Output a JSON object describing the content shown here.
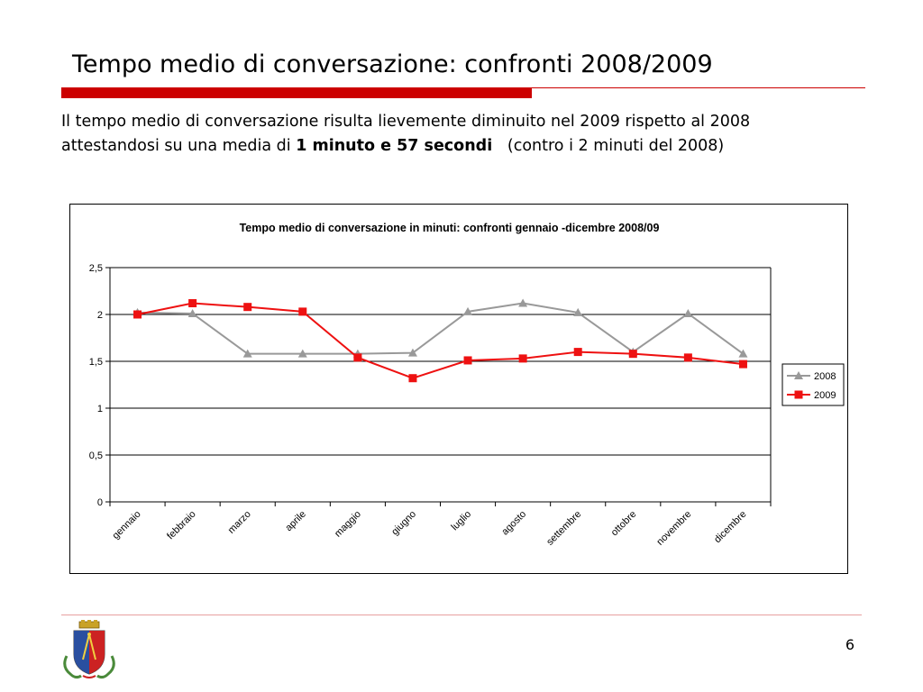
{
  "slide": {
    "title": "Tempo medio di conversazione: confronti 2008/2009",
    "body_line1": "Il tempo medio di conversazione risulta lievemente diminuito nel 2009 rispetto al 2008",
    "body_line2_prefix": "attestandosi su una media di ",
    "body_line2_bold": "1 minuto e 57 secondi",
    "body_line2_suffix": "   (contro i 2 minuti del 2008)",
    "page_number": "6"
  },
  "colors": {
    "accent_red": "#cc0000",
    "series_2008": "#999999",
    "series_2009": "#ee1111"
  },
  "chart_data": {
    "type": "line",
    "title": "Tempo medio di conversazione in minuti: confronti gennaio -dicembre 2008/09",
    "categories": [
      "gennaio",
      "febbraio",
      "marzo",
      "aprile",
      "maggio",
      "giugno",
      "luglio",
      "agosto",
      "settembre",
      "ottobre",
      "novembre",
      "dicembre"
    ],
    "series": [
      {
        "name": "2008",
        "marker": "triangle",
        "color": "#999999",
        "values": [
          2.02,
          2.01,
          1.58,
          1.58,
          1.58,
          1.59,
          2.03,
          2.12,
          2.02,
          1.6,
          2.01,
          1.58
        ]
      },
      {
        "name": "2009",
        "marker": "square",
        "color": "#ee1111",
        "values": [
          2.0,
          2.12,
          2.08,
          2.03,
          1.54,
          1.32,
          1.51,
          1.53,
          1.6,
          1.58,
          1.54,
          1.47
        ]
      }
    ],
    "ylim": [
      0,
      2.5
    ],
    "yticks": [
      "0",
      "0,5",
      "1",
      "1,5",
      "2",
      "2,5"
    ],
    "ytick_values": [
      0,
      0.5,
      1,
      1.5,
      2,
      2.5
    ],
    "grid": true,
    "legend": "right"
  }
}
